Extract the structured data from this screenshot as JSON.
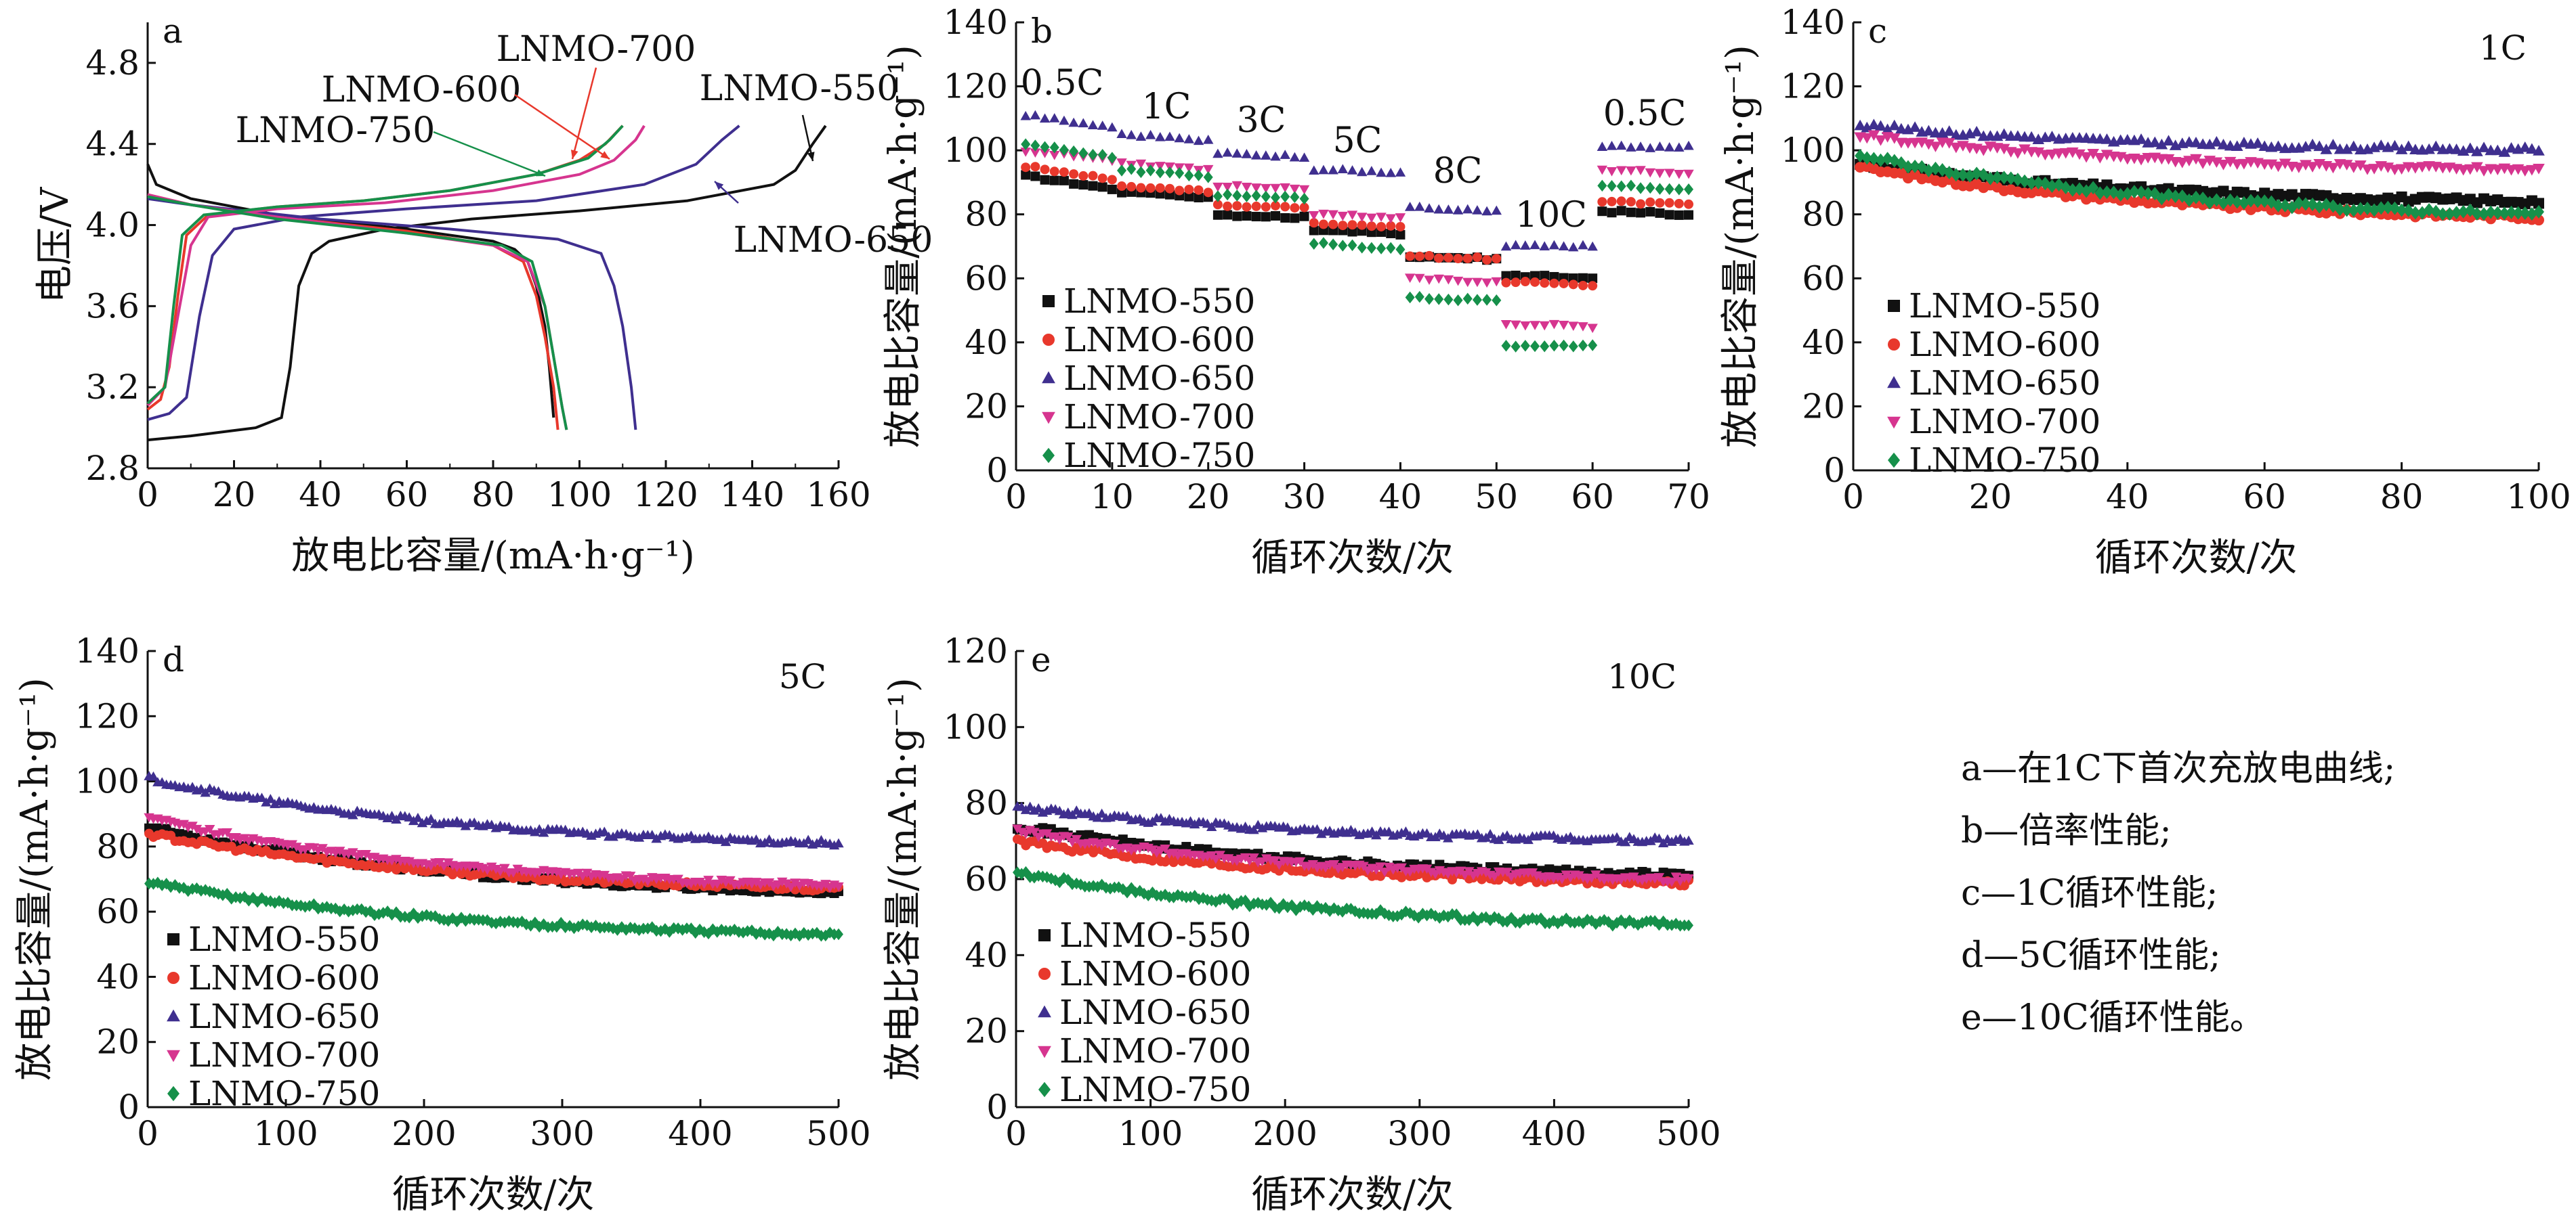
{
  "colors": {
    "LNMO-550": "#111111",
    "LNMO-600": "#e8382c",
    "LNMO-650": "#3f2f8f",
    "LNMO-700": "#d6358f",
    "LNMO-750": "#16904a"
  },
  "legend_labels": [
    "LNMO-550",
    "LNMO-600",
    "LNMO-650",
    "LNMO-700",
    "LNMO-750"
  ],
  "caption": [
    "a—在1C下首次充放电曲线;",
    "b—倍率性能;",
    "c—1C循环性能;",
    "d—5C循环性能;",
    "e—10C循环性能。"
  ],
  "chart_data": [
    {
      "id": "a",
      "type": "line",
      "panel_letter": "a",
      "xlabel": "放电比容量/(mA·h·g⁻¹)",
      "ylabel": "电压/V",
      "xlim": [
        0,
        160
      ],
      "ylim": [
        2.8,
        5.0
      ],
      "xticks": [
        0,
        20,
        40,
        60,
        80,
        100,
        120,
        140,
        160
      ],
      "yticks": [
        2.8,
        3.2,
        3.6,
        4.0,
        4.4,
        4.8
      ],
      "yticklabels": [
        "2.8",
        "3.2",
        "3.6",
        "4.0",
        "4.4",
        "4.8"
      ],
      "series": [
        {
          "name": "LNMO-550",
          "charge": [
            [
              0,
              2.94
            ],
            [
              10,
              2.96
            ],
            [
              25,
              3.0
            ],
            [
              31,
              3.05
            ],
            [
              33,
              3.3
            ],
            [
              35,
              3.7
            ],
            [
              38,
              3.86
            ],
            [
              42,
              3.92
            ],
            [
              55,
              3.98
            ],
            [
              75,
              4.03
            ],
            [
              100,
              4.07
            ],
            [
              125,
              4.12
            ],
            [
              145,
              4.2
            ],
            [
              150,
              4.27
            ],
            [
              154,
              4.4
            ],
            [
              157,
              4.49
            ]
          ],
          "discharge": [
            [
              0,
              4.3
            ],
            [
              2,
              4.2
            ],
            [
              10,
              4.13
            ],
            [
              30,
              4.05
            ],
            [
              60,
              3.98
            ],
            [
              80,
              3.92
            ],
            [
              85,
              3.88
            ],
            [
              88,
              3.82
            ],
            [
              90,
              3.7
            ],
            [
              92,
              3.5
            ],
            [
              93,
              3.3
            ],
            [
              94,
              3.05
            ]
          ]
        },
        {
          "name": "LNMO-600",
          "charge": [
            [
              0,
              3.09
            ],
            [
              3,
              3.14
            ],
            [
              5,
              3.3
            ],
            [
              7,
              3.65
            ],
            [
              9,
              3.95
            ],
            [
              14,
              4.05
            ],
            [
              30,
              4.09
            ],
            [
              50,
              4.12
            ],
            [
              70,
              4.17
            ],
            [
              90,
              4.25
            ],
            [
              100,
              4.32
            ],
            [
              106,
              4.4
            ],
            [
              110,
              4.49
            ]
          ],
          "discharge": [
            [
              0,
              4.15
            ],
            [
              10,
              4.1
            ],
            [
              30,
              4.04
            ],
            [
              60,
              3.97
            ],
            [
              80,
              3.9
            ],
            [
              87,
              3.82
            ],
            [
              90,
              3.65
            ],
            [
              92,
              3.45
            ],
            [
              94,
              3.2
            ],
            [
              95,
              2.99
            ]
          ]
        },
        {
          "name": "LNMO-650",
          "charge": [
            [
              0,
              3.04
            ],
            [
              5,
              3.07
            ],
            [
              9,
              3.15
            ],
            [
              12,
              3.55
            ],
            [
              15,
              3.85
            ],
            [
              20,
              3.98
            ],
            [
              35,
              4.04
            ],
            [
              60,
              4.08
            ],
            [
              90,
              4.12
            ],
            [
              115,
              4.2
            ],
            [
              127,
              4.3
            ],
            [
              133,
              4.42
            ],
            [
              137,
              4.49
            ]
          ],
          "discharge": [
            [
              0,
              4.13
            ],
            [
              10,
              4.1
            ],
            [
              40,
              4.03
            ],
            [
              70,
              3.98
            ],
            [
              95,
              3.93
            ],
            [
              105,
              3.86
            ],
            [
              108,
              3.7
            ],
            [
              110,
              3.5
            ],
            [
              112,
              3.2
            ],
            [
              113,
              2.99
            ]
          ]
        },
        {
          "name": "LNMO-700",
          "charge": [
            [
              0,
              3.11
            ],
            [
              4,
              3.2
            ],
            [
              7,
              3.55
            ],
            [
              10,
              3.9
            ],
            [
              14,
              4.04
            ],
            [
              30,
              4.08
            ],
            [
              55,
              4.11
            ],
            [
              80,
              4.17
            ],
            [
              100,
              4.25
            ],
            [
              108,
              4.32
            ],
            [
              113,
              4.42
            ],
            [
              115,
              4.49
            ]
          ],
          "discharge": [
            [
              0,
              4.15
            ],
            [
              10,
              4.1
            ],
            [
              30,
              4.04
            ],
            [
              60,
              3.96
            ],
            [
              80,
              3.9
            ],
            [
              88,
              3.82
            ],
            [
              92,
              3.6
            ],
            [
              94,
              3.35
            ],
            [
              96,
              3.1
            ],
            [
              97,
              2.99
            ]
          ]
        },
        {
          "name": "LNMO-750",
          "charge": [
            [
              0,
              3.12
            ],
            [
              4,
              3.2
            ],
            [
              6,
              3.6
            ],
            [
              8,
              3.95
            ],
            [
              13,
              4.05
            ],
            [
              30,
              4.09
            ],
            [
              50,
              4.12
            ],
            [
              70,
              4.17
            ],
            [
              90,
              4.25
            ],
            [
              102,
              4.33
            ],
            [
              107,
              4.42
            ],
            [
              110,
              4.49
            ]
          ],
          "discharge": [
            [
              0,
              4.14
            ],
            [
              10,
              4.1
            ],
            [
              30,
              4.03
            ],
            [
              60,
              3.96
            ],
            [
              82,
              3.9
            ],
            [
              89,
              3.82
            ],
            [
              92,
              3.6
            ],
            [
              94,
              3.35
            ],
            [
              96,
              3.1
            ],
            [
              97,
              2.99
            ]
          ]
        }
      ],
      "annotations": [
        "LNMO-700",
        "LNMO-600",
        "LNMO-750",
        "LNMO-550",
        "LNMO-650"
      ]
    },
    {
      "id": "b",
      "type": "scatter",
      "panel_letter": "b",
      "xlabel": "循环次数/次",
      "ylabel": "放电比容量/(mA·h·g⁻¹)",
      "xlim": [
        0,
        70
      ],
      "ylim": [
        0,
        140
      ],
      "xticks": [
        0,
        10,
        20,
        30,
        40,
        50,
        60,
        70
      ],
      "yticks": [
        0,
        20,
        40,
        60,
        80,
        100,
        120,
        140
      ],
      "rate_labels": [
        "0.5C",
        "1C",
        "3C",
        "5C",
        "8C",
        "10C",
        "0.5C"
      ],
      "segments": [
        {
          "start": 1,
          "end": 10,
          "values": {
            "LNMO-550": [
              92,
              88
            ],
            "LNMO-600": [
              95,
              91
            ],
            "LNMO-650": [
              111,
              107
            ],
            "LNMO-700": [
              100,
              97
            ],
            "LNMO-750": [
              102,
              98
            ]
          }
        },
        {
          "start": 11,
          "end": 20,
          "values": {
            "LNMO-550": [
              87,
              85
            ],
            "LNMO-600": [
              89,
              87
            ],
            "LNMO-650": [
              105,
              103
            ],
            "LNMO-700": [
              96,
              94
            ],
            "LNMO-750": [
              94,
              92
            ]
          }
        },
        {
          "start": 21,
          "end": 30,
          "values": {
            "LNMO-550": [
              80,
              79
            ],
            "LNMO-600": [
              83,
              82
            ],
            "LNMO-650": [
              99,
              98
            ],
            "LNMO-700": [
              89,
              88
            ],
            "LNMO-750": [
              86,
              85
            ]
          }
        },
        {
          "start": 31,
          "end": 40,
          "values": {
            "LNMO-550": [
              75,
              74
            ],
            "LNMO-600": [
              77,
              76
            ],
            "LNMO-650": [
              94,
              93
            ],
            "LNMO-700": [
              80,
              79
            ],
            "LNMO-750": [
              71,
              69
            ]
          }
        },
        {
          "start": 41,
          "end": 50,
          "values": {
            "LNMO-550": [
              67,
              66
            ],
            "LNMO-600": [
              67,
              66
            ],
            "LNMO-650": [
              82,
              81
            ],
            "LNMO-700": [
              60,
              59
            ],
            "LNMO-750": [
              54,
              53
            ]
          }
        },
        {
          "start": 51,
          "end": 60,
          "values": {
            "LNMO-550": [
              61,
              60
            ],
            "LNMO-600": [
              59,
              58
            ],
            "LNMO-650": [
              70,
              70
            ],
            "LNMO-700": [
              46,
              45
            ],
            "LNMO-750": [
              39,
              39
            ]
          }
        },
        {
          "start": 61,
          "end": 70,
          "values": {
            "LNMO-550": [
              81,
              80
            ],
            "LNMO-600": [
              84,
              83
            ],
            "LNMO-650": [
              101,
              101
            ],
            "LNMO-700": [
              94,
              93
            ],
            "LNMO-750": [
              89,
              88
            ]
          }
        }
      ]
    },
    {
      "id": "c",
      "type": "scatter",
      "panel_letter": "c",
      "corner_label": "1C",
      "xlabel": "循环次数/次",
      "ylabel": "放电比容量/(mA·h·g⁻¹)",
      "xlim": [
        0,
        100
      ],
      "ylim": [
        0,
        140
      ],
      "xticks": [
        0,
        20,
        40,
        60,
        80,
        100
      ],
      "yticks": [
        0,
        20,
        40,
        60,
        80,
        100,
        120,
        140
      ],
      "series": [
        {
          "name": "LNMO-550",
          "start": 96,
          "end": 84
        },
        {
          "name": "LNMO-600",
          "start": 95,
          "end": 79
        },
        {
          "name": "LNMO-650",
          "start": 108,
          "end": 100
        },
        {
          "name": "LNMO-700",
          "start": 105,
          "end": 94
        },
        {
          "name": "LNMO-750",
          "start": 99,
          "end": 80
        }
      ]
    },
    {
      "id": "d",
      "type": "scatter",
      "panel_letter": "d",
      "corner_label": "5C",
      "xlabel": "循环次数/次",
      "ylabel": "放电比容量/(mA·h·g⁻¹)",
      "xlim": [
        0,
        500
      ],
      "ylim": [
        0,
        140
      ],
      "xticks": [
        0,
        100,
        200,
        300,
        400,
        500
      ],
      "yticks": [
        0,
        20,
        40,
        60,
        80,
        100,
        120,
        140
      ],
      "series": [
        {
          "name": "LNMO-550",
          "start": 86,
          "end": 66
        },
        {
          "name": "LNMO-600",
          "start": 84,
          "end": 67
        },
        {
          "name": "LNMO-650",
          "start": 101,
          "end": 81
        },
        {
          "name": "LNMO-700",
          "start": 89,
          "end": 68
        },
        {
          "name": "LNMO-750",
          "start": 69,
          "end": 53
        }
      ]
    },
    {
      "id": "e",
      "type": "scatter",
      "panel_letter": "e",
      "corner_label": "10C",
      "xlabel": "循环次数/次",
      "ylabel": "放电比容量/(mA·h·g⁻¹)",
      "xlim": [
        0,
        500
      ],
      "ylim": [
        0,
        120
      ],
      "xticks": [
        0,
        100,
        200,
        300,
        400,
        500
      ],
      "yticks": [
        0,
        20,
        40,
        60,
        80,
        100,
        120
      ],
      "series": [
        {
          "name": "LNMO-550",
          "start": 74,
          "end": 61
        },
        {
          "name": "LNMO-600",
          "start": 70,
          "end": 59
        },
        {
          "name": "LNMO-650",
          "start": 79,
          "end": 70
        },
        {
          "name": "LNMO-700",
          "start": 73,
          "end": 60
        },
        {
          "name": "LNMO-750",
          "start": 62,
          "end": 48
        }
      ]
    }
  ]
}
